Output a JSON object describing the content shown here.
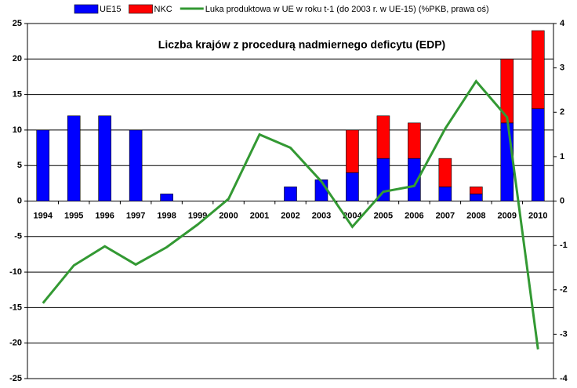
{
  "chart_data": {
    "type": "bar",
    "title": "Liczba krajów z procedurą nadmiernego deficytu (EDP)",
    "categories": [
      "1994",
      "1995",
      "1996",
      "1997",
      "1998",
      "1999",
      "2000",
      "2001",
      "2002",
      "2003",
      "2004",
      "2005",
      "2006",
      "2007",
      "2008",
      "2009",
      "2010"
    ],
    "series": [
      {
        "name": "UE15",
        "color": "#0000ff",
        "type": "bar",
        "values": [
          10,
          12,
          12,
          10,
          1,
          0,
          0,
          0,
          2,
          3,
          4,
          6,
          6,
          2,
          1,
          11,
          13
        ]
      },
      {
        "name": "NKC",
        "color": "#ff0000",
        "type": "bar",
        "values": [
          0,
          0,
          0,
          0,
          0,
          0,
          0,
          0,
          0,
          0,
          6,
          6,
          5,
          4,
          1,
          9,
          11
        ]
      },
      {
        "name": "Luka produktowa w UE w roku t-1 (do 2003 r. w UE-15) (%PKB, prawa oś)",
        "color": "#339933",
        "type": "line",
        "axis": "y2",
        "values": [
          -2.3,
          -1.45,
          -1.02,
          -1.43,
          -1.04,
          -0.53,
          0.05,
          1.5,
          1.2,
          0.44,
          -0.58,
          0.21,
          0.34,
          1.63,
          2.7,
          1.89,
          -3.34
        ]
      }
    ],
    "ylim": [
      -25,
      25
    ],
    "yticks": [
      -25,
      -20,
      -15,
      -10,
      -5,
      0,
      5,
      10,
      15,
      20,
      25
    ],
    "y2lim": [
      -4,
      4
    ],
    "y2ticks": [
      -4,
      -3,
      -2,
      -1,
      0,
      1,
      2,
      3,
      4
    ],
    "grid": true,
    "stacked": true,
    "legend": "top"
  }
}
